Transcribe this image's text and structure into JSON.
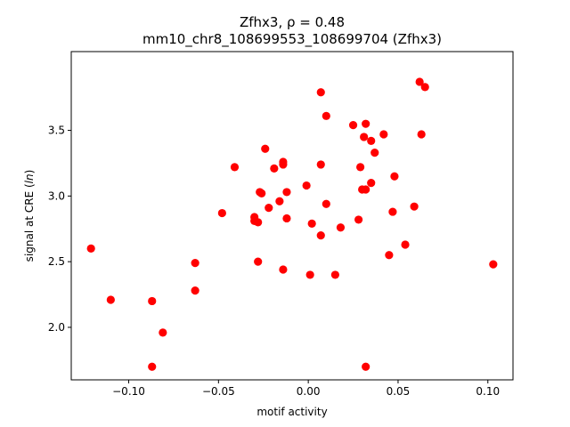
{
  "chart_data": {
    "type": "scatter",
    "title_line1": "Zfhx3, ρ = 0.48",
    "title_line2": "mm10_chr8_108699553_108699704 (Zfhx3)",
    "xlabel": "motif activity",
    "ylabel": "signal at CRE (ln)",
    "xlim": [
      -0.132,
      0.114
    ],
    "ylim": [
      1.6,
      4.1
    ],
    "x_ticks": [
      -0.1,
      -0.05,
      0.0,
      0.05,
      0.1
    ],
    "x_tick_labels": [
      "−0.10",
      "−0.05",
      "0.00",
      "0.05",
      "0.10"
    ],
    "y_ticks": [
      2.0,
      2.5,
      3.0,
      3.5
    ],
    "y_tick_labels": [
      "2.0",
      "2.5",
      "3.0",
      "3.5"
    ],
    "grid": false,
    "marker_color": "#ff0000",
    "points": [
      {
        "x": -0.121,
        "y": 2.6
      },
      {
        "x": -0.11,
        "y": 2.21
      },
      {
        "x": -0.087,
        "y": 2.2
      },
      {
        "x": -0.087,
        "y": 1.7
      },
      {
        "x": -0.081,
        "y": 1.96
      },
      {
        "x": -0.063,
        "y": 2.49
      },
      {
        "x": -0.063,
        "y": 2.28
      },
      {
        "x": -0.048,
        "y": 2.87
      },
      {
        "x": -0.041,
        "y": 3.22
      },
      {
        "x": -0.03,
        "y": 2.84
      },
      {
        "x": -0.03,
        "y": 2.81
      },
      {
        "x": -0.028,
        "y": 2.5
      },
      {
        "x": -0.028,
        "y": 2.8
      },
      {
        "x": -0.027,
        "y": 3.03
      },
      {
        "x": -0.026,
        "y": 3.02
      },
      {
        "x": -0.024,
        "y": 3.36
      },
      {
        "x": -0.022,
        "y": 2.91
      },
      {
        "x": -0.019,
        "y": 3.21
      },
      {
        "x": -0.016,
        "y": 2.96
      },
      {
        "x": -0.014,
        "y": 3.26
      },
      {
        "x": -0.014,
        "y": 3.24
      },
      {
        "x": -0.014,
        "y": 2.44
      },
      {
        "x": -0.012,
        "y": 3.03
      },
      {
        "x": -0.012,
        "y": 2.83
      },
      {
        "x": -0.001,
        "y": 3.08
      },
      {
        "x": 0.001,
        "y": 2.4
      },
      {
        "x": 0.002,
        "y": 2.79
      },
      {
        "x": 0.007,
        "y": 3.79
      },
      {
        "x": 0.007,
        "y": 3.24
      },
      {
        "x": 0.007,
        "y": 2.7
      },
      {
        "x": 0.01,
        "y": 3.61
      },
      {
        "x": 0.01,
        "y": 2.94
      },
      {
        "x": 0.015,
        "y": 2.4
      },
      {
        "x": 0.018,
        "y": 2.76
      },
      {
        "x": 0.025,
        "y": 3.54
      },
      {
        "x": 0.028,
        "y": 2.82
      },
      {
        "x": 0.029,
        "y": 3.22
      },
      {
        "x": 0.03,
        "y": 3.05
      },
      {
        "x": 0.031,
        "y": 3.45
      },
      {
        "x": 0.032,
        "y": 3.55
      },
      {
        "x": 0.032,
        "y": 3.05
      },
      {
        "x": 0.032,
        "y": 1.7
      },
      {
        "x": 0.035,
        "y": 3.42
      },
      {
        "x": 0.035,
        "y": 3.1
      },
      {
        "x": 0.037,
        "y": 3.33
      },
      {
        "x": 0.042,
        "y": 3.47
      },
      {
        "x": 0.045,
        "y": 2.55
      },
      {
        "x": 0.047,
        "y": 2.88
      },
      {
        "x": 0.048,
        "y": 3.15
      },
      {
        "x": 0.054,
        "y": 2.63
      },
      {
        "x": 0.059,
        "y": 2.92
      },
      {
        "x": 0.062,
        "y": 3.87
      },
      {
        "x": 0.063,
        "y": 3.47
      },
      {
        "x": 0.065,
        "y": 3.83
      },
      {
        "x": 0.103,
        "y": 2.48
      }
    ]
  }
}
